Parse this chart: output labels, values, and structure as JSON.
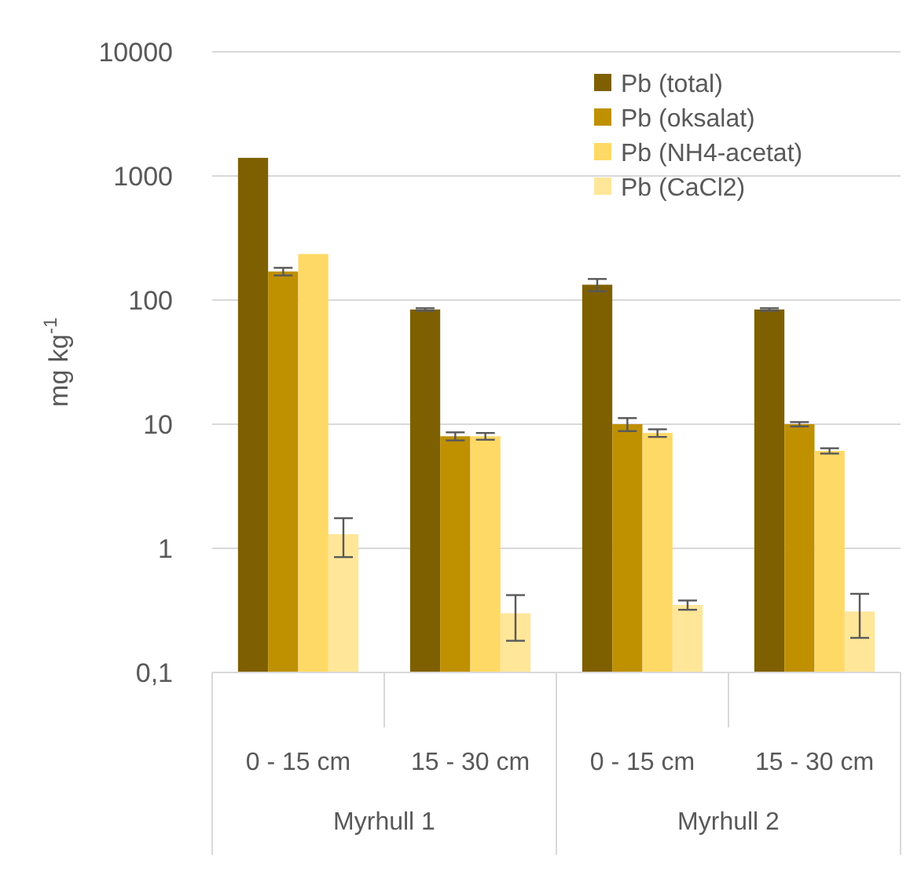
{
  "chart_data": {
    "type": "bar",
    "ylabel": "mg kg$^{-1}$",
    "categories": [
      "0 - 15 cm",
      "15 - 30 cm",
      "0 - 15 cm",
      "15 - 30 cm"
    ],
    "annotations": [
      "Myrhull 1",
      "Myrhull 2"
    ],
    "series": [
      {
        "name": "Pb (total)",
        "color": "#7f6000",
        "values": [
          1400,
          84,
          133,
          84
        ],
        "errors": [
          null,
          2,
          15,
          2
        ]
      },
      {
        "name": "Pb (oksalat)",
        "color": "#bf9000",
        "values": [
          170,
          8,
          10,
          10
        ],
        "errors": [
          12,
          0.6,
          1.2,
          0.4
        ]
      },
      {
        "name": "Pb (NH4-acetat)",
        "color": "#ffd966",
        "values": [
          235,
          8,
          8.5,
          6.1
        ],
        "errors": [
          null,
          0.5,
          0.6,
          0.3
        ]
      },
      {
        "name": "Pb (CaCl2)",
        "color": "#ffe699",
        "values": [
          1.3,
          0.3,
          0.35,
          0.31
        ],
        "errors": [
          0.45,
          0.12,
          0.03,
          0.12
        ]
      }
    ],
    "log": true,
    "ylim": [
      0.1,
      10000
    ],
    "yticks": [
      {
        "value": 0.1,
        "label": "0,1"
      },
      1,
      10,
      100,
      1000,
      10000
    ],
    "grid": "y",
    "legend": "top right"
  }
}
